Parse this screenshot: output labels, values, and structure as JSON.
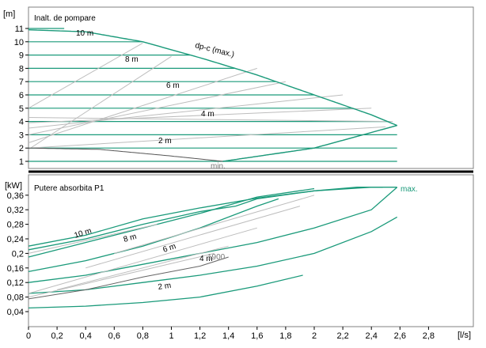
{
  "colors": {
    "curve": "#1a9a7a",
    "grey": "#bdbdbd",
    "grid": "#000000",
    "mark_text": "#7a7a7a"
  },
  "chart_data": [
    {
      "type": "line",
      "panel": "head",
      "title": "Inalt. de pompare",
      "ylabel": "[m]",
      "xlim": [
        0,
        3.0
      ],
      "ylim": [
        0,
        12
      ],
      "yticks": [
        1,
        2,
        3,
        4,
        5,
        6,
        7,
        8,
        9,
        10,
        11
      ],
      "series": [
        {
          "name": "10 m",
          "x": [
            0,
            0.4,
            0.8,
            1.2,
            1.6,
            2.0,
            2.4,
            2.58
          ],
          "y": [
            10.9,
            10.7,
            10.0,
            8.8,
            7.5,
            6.0,
            4.5,
            3.7
          ]
        },
        {
          "name": "min.",
          "x": [
            0,
            0.5,
            1.0,
            1.36,
            2.0,
            2.58
          ],
          "y": [
            2.0,
            1.85,
            1.35,
            1.0,
            2.0,
            3.7
          ]
        }
      ],
      "labels": [
        "10 m",
        "8 m",
        "6 m",
        "4 m",
        "2 m",
        "dp-c (max.)",
        "min."
      ]
    },
    {
      "type": "line",
      "panel": "power",
      "title": "Putere absorbita P1",
      "ylabel": "[kW]",
      "xlabel": "[l/s]",
      "xlim": [
        0,
        3.0
      ],
      "ylim": [
        0,
        0.4
      ],
      "yticks": [
        "0,04",
        "0,08",
        "0,12",
        "0,16",
        "0,2",
        "0,24",
        "0,28",
        "0,32",
        "0,36"
      ],
      "xticks": [
        "0",
        "0,2",
        "0,4",
        "0,6",
        "0,8",
        "1",
        "1,2",
        "1,4",
        "1,6",
        "1,8",
        "2",
        "2,2",
        "2,4",
        "2,6",
        "2,8"
      ],
      "series": [
        {
          "name": "max.",
          "x": [
            0,
            0.4,
            0.8,
            1.2,
            1.6,
            2.0,
            2.4,
            2.58
          ],
          "y": [
            0.22,
            0.25,
            0.29,
            0.32,
            0.35,
            0.37,
            0.38,
            0.38
          ]
        },
        {
          "name": "2 m",
          "x": [
            0,
            0.4,
            0.8,
            1.2,
            1.6,
            1.92
          ],
          "y": [
            0.05,
            0.055,
            0.065,
            0.08,
            0.11,
            0.14
          ]
        }
      ],
      "labels": [
        "10 m",
        "8 m",
        "6 m",
        "4 m",
        "2 m",
        "max.",
        "1900"
      ]
    }
  ]
}
